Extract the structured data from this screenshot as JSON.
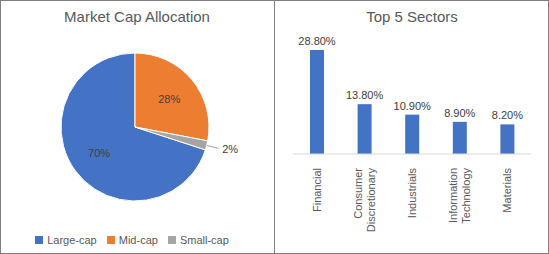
{
  "chart_data": [
    {
      "type": "pie",
      "title": "Market Cap Allocation",
      "categories": [
        "Large-cap",
        "Mid-cap",
        "Small-cap"
      ],
      "values": [
        70,
        28,
        2
      ],
      "value_labels": [
        "70%",
        "28%",
        "2%"
      ],
      "colors": [
        "#4472c4",
        "#ed7d31",
        "#a5a5a5"
      ],
      "data_labels": true,
      "legend": "bottom"
    },
    {
      "type": "bar",
      "title": "Top 5 Sectors",
      "categories": [
        "Financial",
        "Consumer Discretionary",
        "Industrials",
        "Information Technology",
        "Materials"
      ],
      "values": [
        28.8,
        13.8,
        10.9,
        8.9,
        8.2
      ],
      "value_labels": [
        "28.80%",
        "13.80%",
        "10.90%",
        "8.90%",
        "8.20%"
      ],
      "color": "#4472c4",
      "data_labels": true,
      "tick_labels": "x"
    }
  ]
}
